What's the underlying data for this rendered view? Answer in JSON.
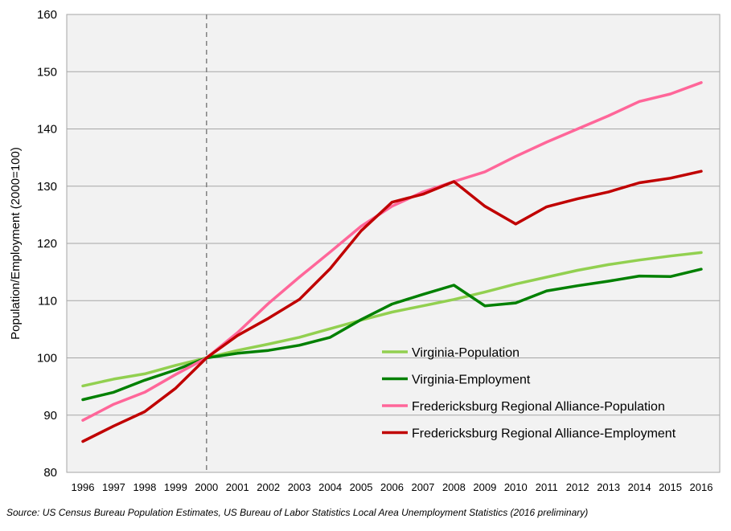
{
  "chart_data": {
    "type": "line",
    "title": "",
    "xlabel": "",
    "ylabel": "Population/Employment (2000=100)",
    "x": [
      1996,
      1997,
      1998,
      1999,
      2000,
      2001,
      2002,
      2003,
      2004,
      2005,
      2006,
      2007,
      2008,
      2009,
      2010,
      2011,
      2012,
      2013,
      2014,
      2015,
      2016
    ],
    "ylim": [
      80,
      160
    ],
    "yticks": [
      80,
      90,
      100,
      110,
      120,
      130,
      140,
      150,
      160
    ],
    "grid": true,
    "legend_placement": "bottom-right",
    "reference_line": {
      "x": 2000,
      "style": "dashed"
    },
    "series": [
      {
        "name": "Virginia-Population",
        "color": "#92d050",
        "values": [
          95.1,
          96.3,
          97.2,
          98.7,
          100.0,
          101.3,
          102.4,
          103.6,
          105.1,
          106.6,
          108.0,
          109.1,
          110.2,
          111.5,
          112.9,
          114.1,
          115.3,
          116.3,
          117.1,
          117.8,
          118.4
        ]
      },
      {
        "name": "Virginia-Employment",
        "color": "#008000",
        "values": [
          92.7,
          94.0,
          96.1,
          97.9,
          100.0,
          100.8,
          101.3,
          102.2,
          103.6,
          106.7,
          109.4,
          111.1,
          112.7,
          109.1,
          109.6,
          111.7,
          112.6,
          113.4,
          114.3,
          114.2,
          115.5
        ]
      },
      {
        "name": "Fredericksburg Regional Alliance-Population",
        "color": "#ff6699",
        "values": [
          89.1,
          91.9,
          94.0,
          97.1,
          100.0,
          104.4,
          109.5,
          114.1,
          118.5,
          123.0,
          126.5,
          129.0,
          130.8,
          132.5,
          135.2,
          137.7,
          140.0,
          142.3,
          144.8,
          146.1,
          148.1
        ]
      },
      {
        "name": "Fredericksburg Regional Alliance-Employment",
        "color": "#c00000",
        "values": [
          85.4,
          88.1,
          90.6,
          94.7,
          100.0,
          103.9,
          106.9,
          110.2,
          115.6,
          122.2,
          127.2,
          128.6,
          130.8,
          126.5,
          123.4,
          126.4,
          127.8,
          129.0,
          130.6,
          131.4,
          132.6
        ]
      }
    ]
  },
  "source_note": "Source: US Census Bureau Population Estimates, US Bureau of Labor Statistics Local Area Unemployment Statistics (2016 preliminary)"
}
